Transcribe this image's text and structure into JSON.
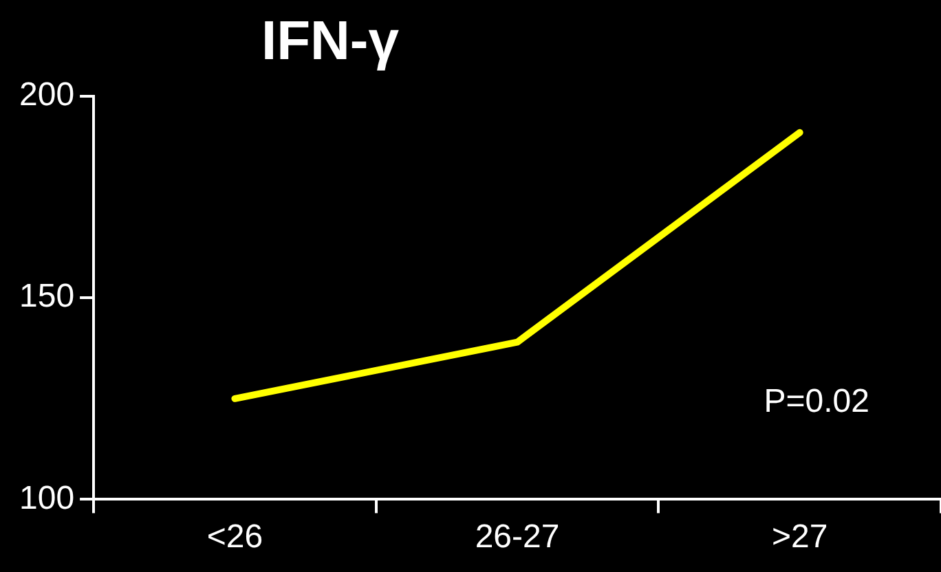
{
  "chart_data": {
    "type": "line",
    "title": "IFN-γ",
    "categories": [
      "<26",
      "26-27",
      ">27"
    ],
    "series": [
      {
        "color": "#ffff00",
        "values": [
          125,
          139,
          191
        ]
      }
    ],
    "ylim": [
      100,
      200
    ],
    "yticks": [
      100,
      150,
      200
    ],
    "grid": false,
    "legend": false,
    "marker": "none",
    "annotations": [
      "P=0.02"
    ]
  }
}
